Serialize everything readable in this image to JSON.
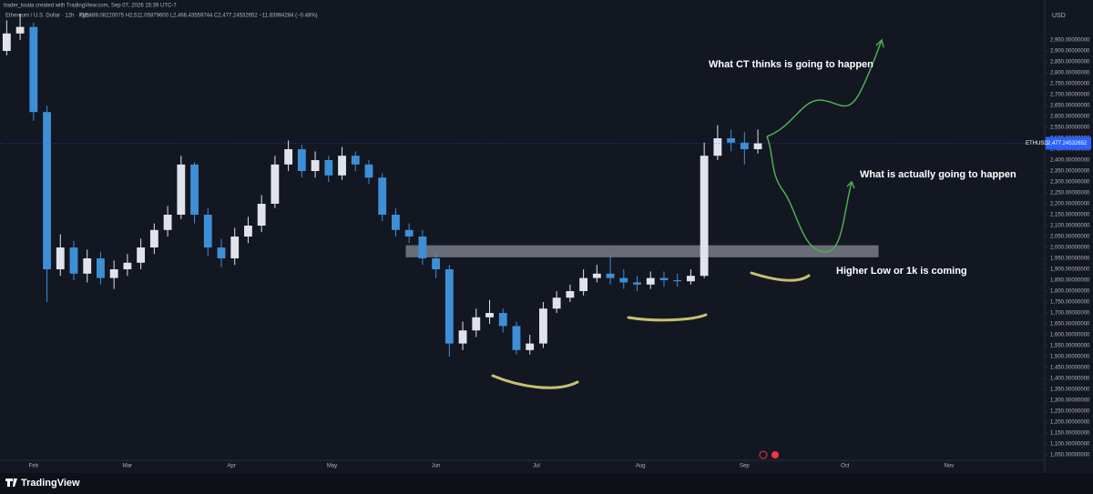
{
  "chart_data": {
    "type": "candlestick",
    "header": "trader_koala created with TradingView.com, Sep 07, 2026 15:39 UTC-7",
    "symbol": "Ethereum / U.S. Dollar · 12h · Pyth",
    "ohlc_legend": "O2,489.08220075 H2,511.05879600 L2,466.43559744 C2,477.24532652 −11.83994284 (−0.48%)",
    "currency": "USD",
    "ticker": "ETHUSD",
    "last_price": {
      "value": 2477.24532652,
      "label": "2,477.24532652"
    },
    "brand": "TradingView",
    "annotations": [
      {
        "text": "What CT thinks is going to happen"
      },
      {
        "text": "What is actually going to happen"
      },
      {
        "text": "Higher Low or 1k is coming"
      }
    ],
    "up_color": "#e0e3eb",
    "down_color": "#3d8fd6",
    "grid": false,
    "zone": [
      1955,
      2010
    ],
    "zone_x": [
      111,
      252
    ],
    "x": [
      -8,
      -4,
      0,
      4,
      8,
      12,
      16,
      20,
      24,
      28,
      32,
      36,
      40,
      44,
      48,
      52,
      56,
      60,
      64,
      68,
      72,
      76,
      80,
      84,
      88,
      92,
      96,
      100,
      104,
      108,
      112,
      116,
      120,
      124,
      128,
      132,
      136,
      140,
      144,
      148,
      152,
      156,
      160,
      164,
      168,
      172,
      176,
      180,
      184,
      188,
      192,
      196,
      200,
      204,
      208,
      212,
      216
    ],
    "open": [
      2900,
      2980,
      3010,
      2620,
      1900,
      2000,
      1880,
      1950,
      1860,
      1900,
      1930,
      2000,
      2080,
      2150,
      2380,
      2150,
      2000,
      1950,
      2050,
      2100,
      2200,
      2380,
      2450,
      2350,
      2400,
      2330,
      2420,
      2380,
      2320,
      2150,
      2080,
      2050,
      1950,
      1900,
      1560,
      1620,
      1680,
      1700,
      1640,
      1530,
      1560,
      1720,
      1770,
      1800,
      1860,
      1880,
      1860,
      1840,
      1830,
      1860,
      1850,
      1845,
      1870,
      2420,
      2500,
      2480,
      2450
    ],
    "high": [
      3040,
      3070,
      3030,
      2650,
      2060,
      2030,
      1990,
      1980,
      1940,
      1970,
      2040,
      2110,
      2190,
      2420,
      2390,
      2180,
      2040,
      2090,
      2140,
      2240,
      2420,
      2490,
      2470,
      2440,
      2420,
      2460,
      2440,
      2400,
      2340,
      2180,
      2110,
      2080,
      1980,
      1920,
      1660,
      1720,
      1760,
      1720,
      1660,
      1600,
      1750,
      1800,
      1830,
      1900,
      1920,
      1970,
      1900,
      1870,
      1890,
      1890,
      1880,
      1900,
      2480,
      2560,
      2540,
      2530,
      2540
    ],
    "low": [
      2880,
      2950,
      2580,
      1750,
      1870,
      1850,
      1840,
      1830,
      1810,
      1870,
      1900,
      1970,
      2050,
      2130,
      2110,
      1960,
      1910,
      1920,
      2020,
      2070,
      2180,
      2350,
      2320,
      2320,
      2300,
      2310,
      2350,
      2290,
      2120,
      2050,
      2020,
      1920,
      1860,
      1500,
      1530,
      1590,
      1650,
      1610,
      1510,
      1510,
      1540,
      1700,
      1750,
      1780,
      1840,
      1830,
      1810,
      1800,
      1810,
      1820,
      1820,
      1830,
      1860,
      2400,
      2440,
      2380,
      2430
    ],
    "close": [
      2980,
      3010,
      2620,
      1900,
      2000,
      1880,
      1950,
      1860,
      1900,
      1930,
      2000,
      2080,
      2150,
      2380,
      2150,
      2000,
      1950,
      2050,
      2100,
      2200,
      2380,
      2450,
      2350,
      2400,
      2330,
      2420,
      2380,
      2320,
      2150,
      2080,
      2050,
      1950,
      1900,
      1560,
      1620,
      1680,
      1700,
      1640,
      1530,
      1560,
      1720,
      1770,
      1800,
      1860,
      1880,
      1860,
      1840,
      1830,
      1860,
      1850,
      1845,
      1870,
      2420,
      2500,
      2480,
      2450,
      2477
    ],
    "xlim": [
      -10,
      301
    ],
    "xticks": [
      {
        "value": 0,
        "label": "Feb"
      },
      {
        "value": 28,
        "label": "Mar"
      },
      {
        "value": 59,
        "label": "Apr"
      },
      {
        "value": 89,
        "label": "May"
      },
      {
        "value": 120,
        "label": "Jun"
      },
      {
        "value": 150,
        "label": "Jul"
      },
      {
        "value": 181,
        "label": "Aug"
      },
      {
        "value": 212,
        "label": "Sep"
      },
      {
        "value": 242,
        "label": "Oct"
      },
      {
        "value": 273,
        "label": "Nov"
      }
    ],
    "ylim": [
      1025,
      3083.3
    ],
    "yticks": [
      {
        "value": 2950,
        "label": "2,950.00000000"
      },
      {
        "value": 2900,
        "label": "2,900.00000000"
      },
      {
        "value": 2850,
        "label": "2,850.00000000"
      },
      {
        "value": 2800,
        "label": "2,800.00000000"
      },
      {
        "value": 2750,
        "label": "2,750.00000000"
      },
      {
        "value": 2700,
        "label": "2,700.00000000"
      },
      {
        "value": 2650,
        "label": "2,650.00000000"
      },
      {
        "value": 2600,
        "label": "2,600.00000000"
      },
      {
        "value": 2550,
        "label": "2,550.00000000"
      },
      {
        "value": 2500,
        "label": "2,500.00000000"
      },
      {
        "value": 2450,
        "label": "2,450.00000000"
      },
      {
        "value": 2400,
        "label": "2,400.00000000"
      },
      {
        "value": 2350,
        "label": "2,350.00000000"
      },
      {
        "value": 2300,
        "label": "2,300.00000000"
      },
      {
        "value": 2250,
        "label": "2,250.00000000"
      },
      {
        "value": 2200,
        "label": "2,200.00000000"
      },
      {
        "value": 2150,
        "label": "2,150.00000000"
      },
      {
        "value": 2100,
        "label": "2,100.00000000"
      },
      {
        "value": 2050,
        "label": "2,050.00000000"
      },
      {
        "value": 2000,
        "label": "2,000.00000000"
      },
      {
        "value": 1950,
        "label": "1,950.00000000"
      },
      {
        "value": 1900,
        "label": "1,900.00000000"
      },
      {
        "value": 1850,
        "label": "1,850.00000000"
      },
      {
        "value": 1800,
        "label": "1,800.00000000"
      },
      {
        "value": 1750,
        "label": "1,750.00000000"
      },
      {
        "value": 1700,
        "label": "1,700.00000000"
      },
      {
        "value": 1650,
        "label": "1,650.00000000"
      },
      {
        "value": 1600,
        "label": "1,600.00000000"
      },
      {
        "value": 1550,
        "label": "1,550.00000000"
      },
      {
        "value": 1500,
        "label": "1,500.00000000"
      },
      {
        "value": 1450,
        "label": "1,450.00000000"
      },
      {
        "value": 1400,
        "label": "1,400.00000000"
      },
      {
        "value": 1350,
        "label": "1,350.00000000"
      },
      {
        "value": 1300,
        "label": "1,300.00000000"
      },
      {
        "value": 1250,
        "label": "1,250.00000000"
      },
      {
        "value": 1200,
        "label": "1,200.00000000"
      },
      {
        "value": 1150,
        "label": "1,150.00000000"
      },
      {
        "value": 1100,
        "label": "1,100.00000000"
      },
      {
        "value": 1050,
        "label": "1,050.00000000"
      }
    ]
  }
}
